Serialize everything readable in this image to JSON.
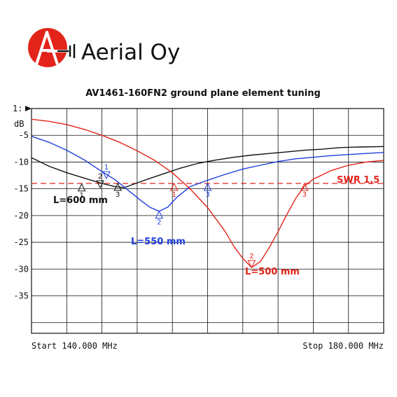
{
  "brand": {
    "name": "Aerial Oy",
    "colors": {
      "logo_red": "#e3241b",
      "text": "#111111"
    }
  },
  "chart_data": {
    "type": "line",
    "title": "AV1461-160FN2 ground plane element tuning",
    "ref_label": "1:",
    "ylabel": "dB",
    "x_start_label": "Start 140.000 MHz",
    "x_stop_label": "Stop 180.000 MHz",
    "xlim": [
      140,
      180
    ],
    "ylim": [
      -42,
      0
    ],
    "yticks": [
      "-5",
      "-10",
      "-15",
      "-20",
      "-25",
      "-30",
      "-35"
    ],
    "grid": true,
    "threshold": {
      "name": "SWR 1,5",
      "value": -14,
      "color": "#e3241b"
    },
    "series": [
      {
        "name": "L=600 mm",
        "color": "#111111",
        "x": [
          140,
          142,
          144,
          146,
          148,
          149.5,
          150.5,
          151.5,
          153,
          155,
          157,
          159,
          161,
          163,
          165,
          167,
          169,
          171,
          173,
          175,
          177,
          180
        ],
        "y": [
          -9.2,
          -10.8,
          -12.0,
          -13.0,
          -14.0,
          -14.6,
          -14.8,
          -14.2,
          -13.3,
          -12.2,
          -11.1,
          -10.2,
          -9.6,
          -9.1,
          -8.7,
          -8.4,
          -8.1,
          -7.8,
          -7.6,
          -7.3,
          -7.2,
          -7.1
        ],
        "markers": [
          {
            "num": "1",
            "x": 145.7,
            "y": -14.1,
            "dir": "up"
          },
          {
            "num": "2",
            "x": 147.8,
            "y": -14.8,
            "dir": "down"
          },
          {
            "num": "3",
            "x": 149.8,
            "y": -14.0,
            "dir": "up"
          }
        ]
      },
      {
        "name": "L=550 mm",
        "color": "#1f3fdc",
        "x": [
          140,
          142,
          144,
          146,
          148,
          149.5,
          151,
          152.5,
          153.5,
          154.5,
          155.5,
          156.5,
          158,
          160,
          162,
          164,
          166,
          168,
          170,
          172,
          174,
          176,
          178,
          180
        ],
        "y": [
          -5.2,
          -6.3,
          -7.8,
          -9.6,
          -11.8,
          -13.3,
          -15.3,
          -17.3,
          -18.5,
          -19.2,
          -18.4,
          -16.6,
          -14.6,
          -13.4,
          -12.3,
          -11.3,
          -10.6,
          -9.9,
          -9.4,
          -9.1,
          -8.8,
          -8.6,
          -8.4,
          -8.2
        ],
        "markers": [
          {
            "num": "1",
            "x": 148.5,
            "y": -13.1,
            "dir": "down"
          },
          {
            "num": "2",
            "x": 154.5,
            "y": -19.2,
            "dir": "up"
          },
          {
            "num": "3",
            "x": 160.0,
            "y": -14.0,
            "dir": "up"
          }
        ]
      },
      {
        "name": "L=500 mm",
        "color": "#e3241b",
        "x": [
          140,
          142,
          144,
          146,
          148,
          150,
          152,
          154,
          156,
          158,
          160,
          162,
          163,
          164,
          165,
          166,
          167,
          168,
          169,
          170,
          171,
          172,
          174,
          176,
          178,
          180
        ],
        "y": [
          -2.0,
          -2.4,
          -3.0,
          -3.9,
          -5.0,
          -6.3,
          -7.9,
          -9.7,
          -12.0,
          -15.0,
          -18.5,
          -23.0,
          -25.8,
          -28.0,
          -29.7,
          -28.6,
          -26.0,
          -23.0,
          -19.8,
          -16.8,
          -14.5,
          -13.2,
          -11.6,
          -10.6,
          -10.0,
          -9.7
        ],
        "markers": [
          {
            "num": "1",
            "x": 156.2,
            "y": -14.0,
            "dir": "up"
          },
          {
            "num": "2",
            "x": 165.0,
            "y": -29.7,
            "dir": "down"
          },
          {
            "num": "3",
            "x": 171.0,
            "y": -14.0,
            "dir": "up"
          }
        ]
      }
    ]
  }
}
